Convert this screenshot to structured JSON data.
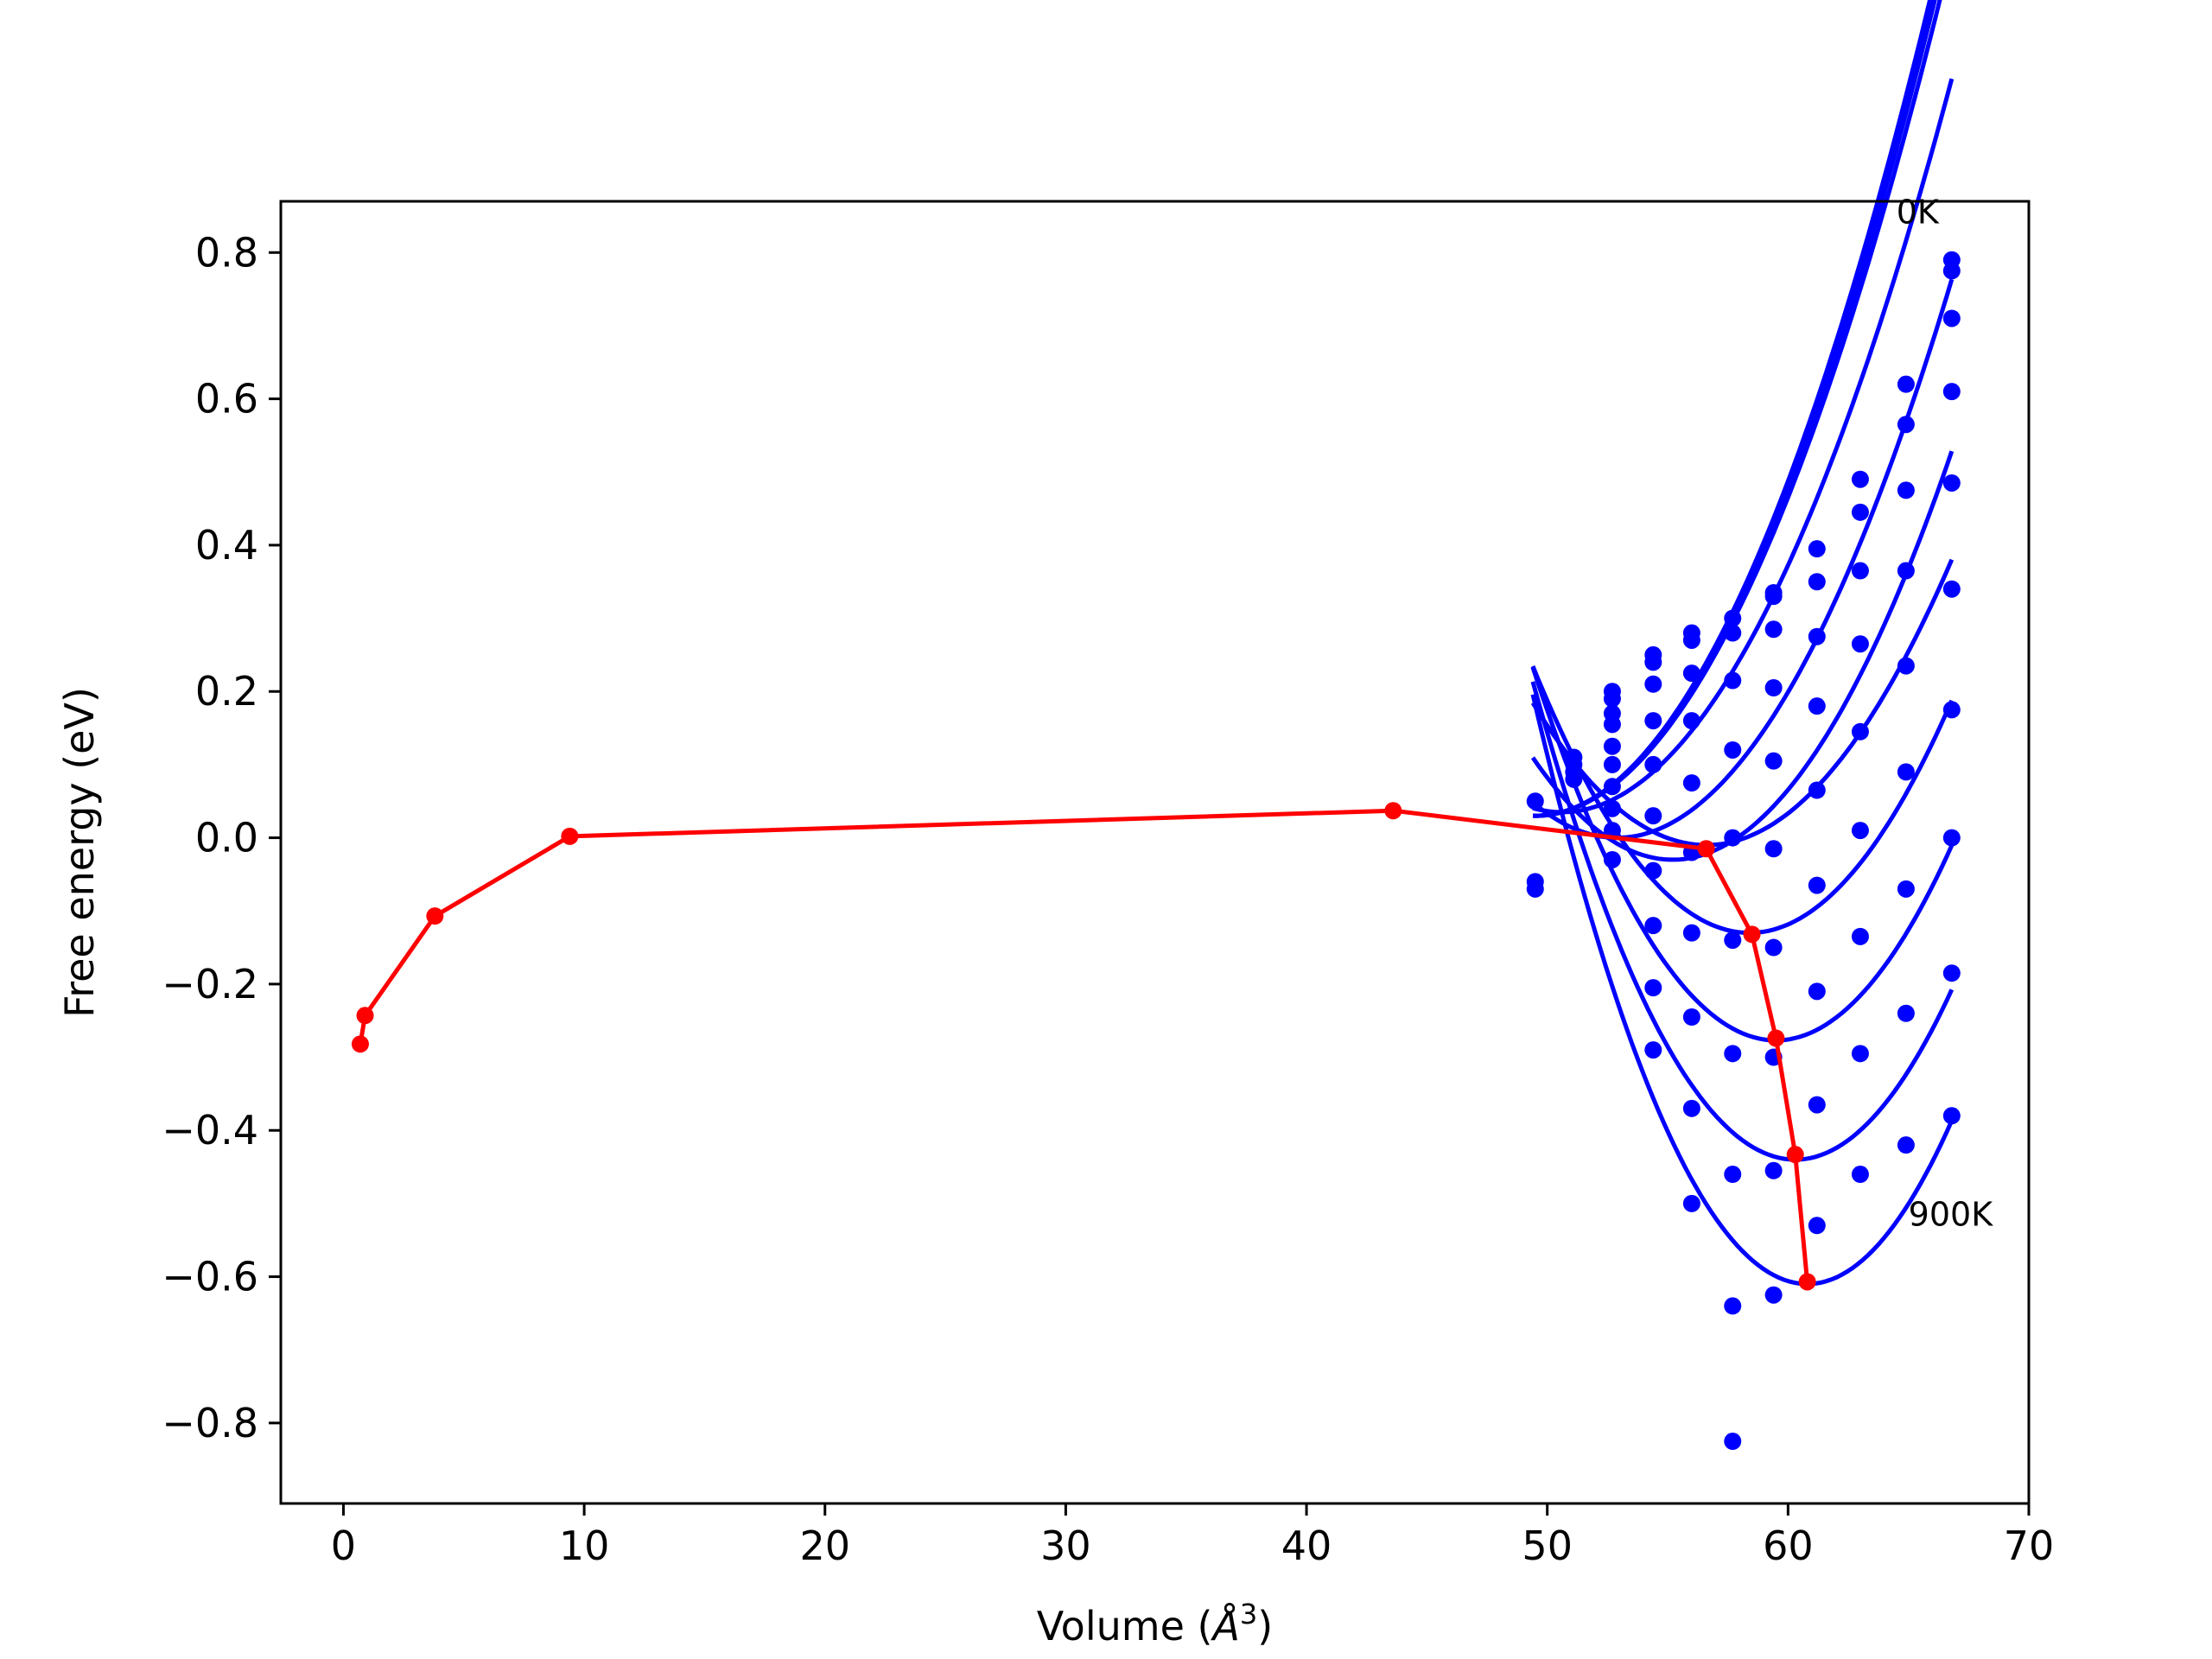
{
  "chart_data": {
    "type": "line",
    "title": "",
    "xlabel": "Volume (",
    "xlabel_symbol": "Å",
    "xlabel_exponent": "3",
    "xlabel_close": ")",
    "ylabel": "Free energy (eV)",
    "xlim": [
      -2.6,
      70
    ],
    "ylim": [
      -0.91,
      0.87
    ],
    "xticks": [
      0,
      10,
      20,
      30,
      40,
      50,
      60,
      70
    ],
    "xtick_labels": [
      "0",
      "10",
      "20",
      "30",
      "40",
      "50",
      "60",
      "70"
    ],
    "yticks": [
      -0.8,
      -0.6,
      -0.4,
      -0.2,
      0.0,
      0.2,
      0.4,
      0.6,
      0.8
    ],
    "ytick_labels": [
      "−0.8",
      "−0.6",
      "−0.4",
      "−0.2",
      "0.0",
      "0.2",
      "0.4",
      "0.6",
      "0.8"
    ],
    "grid": false,
    "colors": {
      "fit": "#0000ff",
      "points": "#0000ff",
      "minimum": "#ff0000"
    },
    "annotations": [
      {
        "text": "0K",
        "x": 64.5,
        "y": 0.84
      },
      {
        "text": "900K",
        "x": 65.0,
        "y": -0.53
      }
    ],
    "fit_x_range": [
      49.4,
      66.8
    ],
    "fit_curves": [
      {
        "vmin": 49.5,
        "fmin": 0.03,
        "curvature": 0.00415
      },
      {
        "vmin": 49.5,
        "fmin": 0.03,
        "curvature": 0.00412
      },
      {
        "vmin": 49.5,
        "fmin": 0.03,
        "curvature": 0.00405
      },
      {
        "vmin": 49.5,
        "fmin": 0.03,
        "curvature": 0.00395
      },
      {
        "vmin": 50.6,
        "fmin": 0.035,
        "curvature": 0.00382
      },
      {
        "vmin": 52.9,
        "fmin": 0.0,
        "curvature": 0.00395
      },
      {
        "vmin": 55.2,
        "fmin": -0.03,
        "curvature": 0.00415
      },
      {
        "vmin": 56.6,
        "fmin": -0.01,
        "curvature": 0.00375
      },
      {
        "vmin": 58.4,
        "fmin": -0.13,
        "curvature": 0.0045
      },
      {
        "vmin": 59.5,
        "fmin": -0.277,
        "curvature": 0.005
      },
      {
        "vmin": 60.3,
        "fmin": -0.44,
        "curvature": 0.0055
      },
      {
        "vmin": 60.8,
        "fmin": -0.61,
        "curvature": 0.0062
      }
    ],
    "scatter_points": [
      {
        "x": 49.5,
        "y": 0.05
      },
      {
        "x": 49.5,
        "y": -0.06
      },
      {
        "x": 49.5,
        "y": -0.07
      },
      {
        "x": 51.1,
        "y": 0.11
      },
      {
        "x": 51.1,
        "y": 0.1
      },
      {
        "x": 51.1,
        "y": 0.09
      },
      {
        "x": 51.1,
        "y": 0.08
      },
      {
        "x": 52.7,
        "y": 0.2
      },
      {
        "x": 52.7,
        "y": 0.19
      },
      {
        "x": 52.7,
        "y": 0.17
      },
      {
        "x": 52.7,
        "y": 0.155
      },
      {
        "x": 52.7,
        "y": 0.125
      },
      {
        "x": 52.7,
        "y": 0.1
      },
      {
        "x": 52.7,
        "y": 0.07
      },
      {
        "x": 52.7,
        "y": 0.04
      },
      {
        "x": 52.7,
        "y": 0.01
      },
      {
        "x": 52.7,
        "y": -0.03
      },
      {
        "x": 54.4,
        "y": 0.25
      },
      {
        "x": 54.4,
        "y": 0.24
      },
      {
        "x": 54.4,
        "y": 0.21
      },
      {
        "x": 54.4,
        "y": 0.16
      },
      {
        "x": 54.4,
        "y": 0.1
      },
      {
        "x": 54.4,
        "y": 0.03
      },
      {
        "x": 54.4,
        "y": -0.045
      },
      {
        "x": 54.4,
        "y": -0.12
      },
      {
        "x": 54.4,
        "y": -0.205
      },
      {
        "x": 54.4,
        "y": -0.29
      },
      {
        "x": 56.0,
        "y": 0.28
      },
      {
        "x": 56.0,
        "y": 0.27
      },
      {
        "x": 56.0,
        "y": 0.225
      },
      {
        "x": 56.0,
        "y": 0.16
      },
      {
        "x": 56.0,
        "y": 0.075
      },
      {
        "x": 56.0,
        "y": -0.02
      },
      {
        "x": 56.0,
        "y": -0.13
      },
      {
        "x": 56.0,
        "y": -0.245
      },
      {
        "x": 56.0,
        "y": -0.37
      },
      {
        "x": 56.0,
        "y": -0.5
      },
      {
        "x": 57.7,
        "y": 0.3
      },
      {
        "x": 57.7,
        "y": 0.28
      },
      {
        "x": 57.7,
        "y": 0.215
      },
      {
        "x": 57.7,
        "y": 0.12
      },
      {
        "x": 57.7,
        "y": 0.0
      },
      {
        "x": 57.7,
        "y": -0.14
      },
      {
        "x": 57.7,
        "y": -0.295
      },
      {
        "x": 57.7,
        "y": -0.46
      },
      {
        "x": 57.7,
        "y": -0.64
      },
      {
        "x": 57.7,
        "y": -0.825
      },
      {
        "x": 59.4,
        "y": 0.335
      },
      {
        "x": 59.4,
        "y": 0.33
      },
      {
        "x": 59.4,
        "y": 0.285
      },
      {
        "x": 59.4,
        "y": 0.205
      },
      {
        "x": 59.4,
        "y": 0.105
      },
      {
        "x": 59.4,
        "y": -0.015
      },
      {
        "x": 59.4,
        "y": -0.15
      },
      {
        "x": 59.4,
        "y": -0.3
      },
      {
        "x": 59.4,
        "y": -0.455
      },
      {
        "x": 59.4,
        "y": -0.625
      },
      {
        "x": 61.2,
        "y": 0.395
      },
      {
        "x": 61.2,
        "y": 0.35
      },
      {
        "x": 61.2,
        "y": 0.275
      },
      {
        "x": 61.2,
        "y": 0.18
      },
      {
        "x": 61.2,
        "y": 0.065
      },
      {
        "x": 61.2,
        "y": -0.065
      },
      {
        "x": 61.2,
        "y": -0.21
      },
      {
        "x": 61.2,
        "y": -0.365
      },
      {
        "x": 61.2,
        "y": -0.53
      },
      {
        "x": 63.0,
        "y": 0.49
      },
      {
        "x": 63.0,
        "y": 0.445
      },
      {
        "x": 63.0,
        "y": 0.365
      },
      {
        "x": 63.0,
        "y": 0.265
      },
      {
        "x": 63.0,
        "y": 0.145
      },
      {
        "x": 63.0,
        "y": 0.01
      },
      {
        "x": 63.0,
        "y": -0.135
      },
      {
        "x": 63.0,
        "y": -0.295
      },
      {
        "x": 63.0,
        "y": -0.46
      },
      {
        "x": 64.9,
        "y": 0.62
      },
      {
        "x": 64.9,
        "y": 0.565
      },
      {
        "x": 64.9,
        "y": 0.475
      },
      {
        "x": 64.9,
        "y": 0.365
      },
      {
        "x": 64.9,
        "y": 0.235
      },
      {
        "x": 64.9,
        "y": 0.09
      },
      {
        "x": 64.9,
        "y": -0.07
      },
      {
        "x": 64.9,
        "y": -0.24
      },
      {
        "x": 64.9,
        "y": -0.42
      },
      {
        "x": 66.8,
        "y": 0.79
      },
      {
        "x": 66.8,
        "y": 0.775
      },
      {
        "x": 66.8,
        "y": 0.71
      },
      {
        "x": 66.8,
        "y": 0.61
      },
      {
        "x": 66.8,
        "y": 0.485
      },
      {
        "x": 66.8,
        "y": 0.34
      },
      {
        "x": 66.8,
        "y": 0.175
      },
      {
        "x": 66.8,
        "y": 0.0
      },
      {
        "x": 66.8,
        "y": -0.185
      },
      {
        "x": 66.8,
        "y": -0.38
      }
    ],
    "minimum_path": {
      "x": [
        0.7,
        0.9,
        3.8,
        9.4,
        43.6,
        56.6,
        58.5,
        59.5,
        60.3,
        60.8
      ],
      "y": [
        -0.282,
        -0.243,
        -0.107,
        0.002,
        0.037,
        -0.015,
        -0.132,
        -0.274,
        -0.433,
        -0.607
      ]
    }
  }
}
